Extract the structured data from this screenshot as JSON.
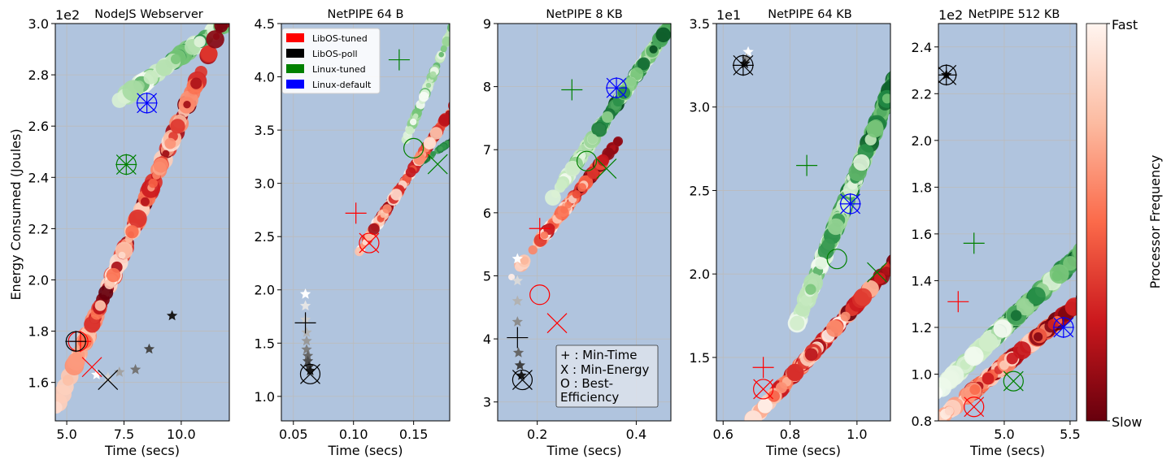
{
  "figure": {
    "ylabel": "Energy Consumed (Joules)",
    "colorbar": {
      "label": "Processor Frequency",
      "top_label": "Fast",
      "bottom_label": "Slow",
      "colors": [
        "#fff5f0",
        "#fcbba1",
        "#fb6a4a",
        "#cb181d",
        "#67000d"
      ]
    },
    "legend": [
      {
        "label": "LibOS-tuned",
        "color": "#ff0000"
      },
      {
        "label": "LibOS-poll",
        "color": "#000000"
      },
      {
        "label": "Linux-tuned",
        "color": "#008000"
      },
      {
        "label": "Linux-default",
        "color": "#0000ff"
      }
    ],
    "marker_key": [
      "+ : Min-Time",
      "X : Min-Energy",
      "O : Best-",
      "Efficiency"
    ],
    "panel_bg": "#b0c4de"
  },
  "chart_data": [
    {
      "type": "scatter",
      "title": "NodeJS Webserver",
      "xlabel": "Time (secs)",
      "ylabel": "Energy Consumed (Joules)",
      "y_multiplier": "1e2",
      "xlim": [
        4.5,
        12.1
      ],
      "ylim": [
        1.45,
        3.0
      ],
      "xticks": [
        5.0,
        7.5,
        10.0
      ],
      "xtick_labels": [
        "5.0",
        "7.5",
        "10.0"
      ],
      "yticks": [
        1.6,
        1.8,
        2.0,
        2.2,
        2.4,
        2.6,
        2.8,
        3.0
      ],
      "ytick_labels": [
        "1.6",
        "1.8",
        "2.0",
        "2.2",
        "2.4",
        "2.6",
        "2.8",
        "3.0"
      ],
      "clouds": [
        {
          "group": "Linux-tuned",
          "palette": "green",
          "p0": [
            7.6,
            2.72
          ],
          "p1": [
            12.2,
            3.02
          ],
          "spread": 0.25,
          "count": 90,
          "size": [
            5,
            13
          ],
          "shade": [
            0.0,
            0.8
          ]
        },
        {
          "group": "LibOS-tuned",
          "palette": "red",
          "p0": [
            5.5,
            1.7
          ],
          "p1": [
            11.2,
            2.88
          ],
          "spread": 0.55,
          "count": 200,
          "size": [
            4,
            12
          ],
          "shade": [
            0.0,
            1.0
          ]
        }
      ],
      "markers": [
        {
          "group": "LibOS-tuned",
          "color": "#ff0000",
          "min_time": [
            5.6,
            1.76
          ],
          "min_energy": [
            6.1,
            1.66
          ],
          "best_eff": [
            5.5,
            1.76
          ]
        },
        {
          "group": "LibOS-poll",
          "color": "#000000",
          "min_time": [
            5.4,
            1.76
          ],
          "min_energy": [
            6.8,
            1.61
          ],
          "best_eff": [
            5.4,
            1.76
          ]
        },
        {
          "group": "Linux-tuned",
          "color": "#008000",
          "min_time": [
            7.6,
            2.45
          ],
          "min_energy": [
            7.6,
            2.45
          ],
          "best_eff": [
            7.6,
            2.45
          ]
        },
        {
          "group": "Linux-default",
          "color": "#0000ff",
          "min_time": [
            8.5,
            2.69
          ],
          "min_energy": [
            8.5,
            2.69
          ],
          "best_eff": [
            8.5,
            2.69
          ]
        }
      ],
      "stars": [
        {
          "x": 6.3,
          "y": 1.63
        },
        {
          "x": 6.8,
          "y": 1.62
        },
        {
          "x": 7.3,
          "y": 1.64
        },
        {
          "x": 8.0,
          "y": 1.65
        },
        {
          "x": 8.6,
          "y": 1.73
        },
        {
          "x": 9.6,
          "y": 1.86
        }
      ]
    },
    {
      "type": "scatter",
      "title": "NetPIPE 64 B",
      "xlabel": "Time (secs)",
      "y_multiplier": "",
      "xlim": [
        0.04,
        0.18
      ],
      "ylim": [
        0.77,
        4.5
      ],
      "xticks": [
        0.05,
        0.1,
        0.15
      ],
      "xtick_labels": [
        "0.05",
        "0.10",
        "0.15"
      ],
      "yticks": [
        1.0,
        1.5,
        2.0,
        2.5,
        3.0,
        3.5,
        4.0,
        4.5
      ],
      "ytick_labels": [
        "1.0",
        "1.5",
        "2.0",
        "2.5",
        "3.0",
        "3.5",
        "4.0",
        "4.5"
      ],
      "clouds": [
        {
          "group": "Linux-tuned",
          "palette": "green",
          "p0": [
            0.145,
            3.45
          ],
          "p1": [
            0.182,
            4.45
          ],
          "spread": 0.22,
          "count": 80,
          "size": [
            3,
            7
          ],
          "shade": [
            0.0,
            0.6
          ]
        },
        {
          "group": "Linux-default",
          "palette": "green",
          "p0": [
            0.15,
            3.15
          ],
          "p1": [
            0.182,
            3.4
          ],
          "spread": 0.25,
          "count": 40,
          "size": [
            3,
            5
          ],
          "shade": [
            0.6,
            1.0
          ]
        },
        {
          "group": "LibOS-tuned",
          "palette": "red",
          "p0": [
            0.11,
            2.45
          ],
          "p1": [
            0.182,
            3.7
          ],
          "spread": 0.45,
          "count": 150,
          "size": [
            3,
            8
          ],
          "shade": [
            0.0,
            1.0
          ]
        }
      ],
      "markers": [
        {
          "group": "LibOS-tuned",
          "color": "#ff0000",
          "min_time": [
            0.102,
            2.72
          ],
          "min_energy": [
            0.113,
            2.44
          ],
          "best_eff": [
            0.113,
            2.44
          ]
        },
        {
          "group": "LibOS-poll",
          "color": "#000000",
          "min_time": [
            0.06,
            1.69
          ],
          "min_energy": [
            0.064,
            1.21
          ],
          "best_eff": [
            0.064,
            1.21
          ]
        },
        {
          "group": "Linux-tuned",
          "color": "#008000",
          "min_time": [
            0.138,
            4.16
          ],
          "min_energy": [
            0.17,
            3.18
          ],
          "best_eff": [
            0.15,
            3.33
          ]
        },
        {
          "group": "Linux-default",
          "color": "#0000ff",
          "min_time": null,
          "min_energy": null,
          "best_eff": null
        }
      ],
      "stars": [
        {
          "x": 0.06,
          "y": 1.96
        },
        {
          "x": 0.06,
          "y": 1.85
        },
        {
          "x": 0.06,
          "y": 1.72
        },
        {
          "x": 0.061,
          "y": 1.6
        },
        {
          "x": 0.061,
          "y": 1.52
        },
        {
          "x": 0.061,
          "y": 1.44
        },
        {
          "x": 0.062,
          "y": 1.38
        },
        {
          "x": 0.062,
          "y": 1.33
        },
        {
          "x": 0.063,
          "y": 1.28
        },
        {
          "x": 0.064,
          "y": 1.24
        }
      ]
    },
    {
      "type": "scatter",
      "title": "NetPIPE 8 KB",
      "xlabel": "Time (secs)",
      "y_multiplier": "",
      "xlim": [
        0.12,
        0.47
      ],
      "ylim": [
        2.7,
        9.0
      ],
      "xticks": [
        0.2,
        0.4
      ],
      "xtick_labels": [
        "0.2",
        "0.4"
      ],
      "yticks": [
        3,
        4,
        5,
        6,
        7,
        8,
        9
      ],
      "ytick_labels": [
        "3",
        "4",
        "5",
        "6",
        "7",
        "8",
        "9"
      ],
      "clouds": [
        {
          "group": "Linux-tuned",
          "palette": "green",
          "p0": [
            0.28,
            6.8
          ],
          "p1": [
            0.47,
            9.0
          ],
          "spread": 0.9,
          "count": 220,
          "size": [
            5,
            10
          ],
          "shade": [
            0.0,
            1.0
          ]
        },
        {
          "group": "LibOS-tuned",
          "palette": "red",
          "p0": [
            0.19,
            5.4
          ],
          "p1": [
            0.33,
            6.8
          ],
          "spread": 0.9,
          "count": 160,
          "size": [
            4,
            9
          ],
          "shade": [
            0.0,
            1.0
          ]
        }
      ],
      "markers": [
        {
          "group": "LibOS-tuned",
          "color": "#ff0000",
          "min_time": [
            0.205,
            5.75
          ],
          "min_energy": [
            0.24,
            4.25
          ],
          "best_eff": [
            0.205,
            4.7
          ]
        },
        {
          "group": "LibOS-poll",
          "color": "#000000",
          "min_time": [
            0.16,
            4.02
          ],
          "min_energy": [
            0.17,
            3.35
          ],
          "best_eff": [
            0.17,
            3.35
          ]
        },
        {
          "group": "Linux-tuned",
          "color": "#008000",
          "min_time": [
            0.27,
            7.95
          ],
          "min_energy": [
            0.34,
            6.7
          ],
          "best_eff": [
            0.3,
            6.82
          ]
        },
        {
          "group": "Linux-default",
          "color": "#0000ff",
          "min_time": [
            0.36,
            7.98
          ],
          "min_energy": [
            0.36,
            7.98
          ],
          "best_eff": [
            0.36,
            7.98
          ]
        }
      ],
      "stars": [
        {
          "x": 0.16,
          "y": 5.27
        },
        {
          "x": 0.16,
          "y": 4.92
        },
        {
          "x": 0.16,
          "y": 4.6
        },
        {
          "x": 0.16,
          "y": 4.27
        },
        {
          "x": 0.162,
          "y": 3.78
        },
        {
          "x": 0.165,
          "y": 3.58
        },
        {
          "x": 0.168,
          "y": 3.42
        }
      ]
    },
    {
      "type": "scatter",
      "title": "NetPIPE 64 KB",
      "xlabel": "Time (secs)",
      "y_multiplier": "1e1",
      "xlim": [
        0.58,
        1.1
      ],
      "ylim": [
        1.12,
        3.5
      ],
      "xticks": [
        0.6,
        0.8,
        1.0
      ],
      "xtick_labels": [
        "0.6",
        "0.8",
        "1.0"
      ],
      "yticks": [
        1.5,
        2.0,
        2.5,
        3.0,
        3.5
      ],
      "ytick_labels": [
        "1.5",
        "2.0",
        "2.5",
        "3.0",
        "3.5"
      ],
      "clouds": [
        {
          "group": "Linux-tuned",
          "palette": "green",
          "p0": [
            0.87,
            1.95
          ],
          "p1": [
            1.1,
            3.1
          ],
          "spread": 0.85,
          "count": 260,
          "size": [
            6,
            12
          ],
          "shade": [
            0.0,
            1.0
          ]
        },
        {
          "group": "LibOS-tuned",
          "palette": "red",
          "p0": [
            0.73,
            1.22
          ],
          "p1": [
            1.08,
            2.0
          ],
          "spread": 0.8,
          "count": 220,
          "size": [
            5,
            11
          ],
          "shade": [
            0.0,
            1.0
          ]
        }
      ],
      "markers": [
        {
          "group": "LibOS-tuned",
          "color": "#ff0000",
          "min_time": [
            0.72,
            1.44
          ],
          "min_energy": [
            0.72,
            1.31
          ],
          "best_eff": [
            0.72,
            1.31
          ]
        },
        {
          "group": "LibOS-poll",
          "color": "#000000",
          "min_time": [
            0.66,
            3.25
          ],
          "min_energy": [
            0.66,
            3.25
          ],
          "best_eff": [
            0.66,
            3.25
          ]
        },
        {
          "group": "Linux-tuned",
          "color": "#008000",
          "min_time": [
            0.85,
            2.65
          ],
          "min_energy": [
            1.06,
            2.01
          ],
          "best_eff": [
            0.94,
            2.09
          ]
        },
        {
          "group": "Linux-default",
          "color": "#0000ff",
          "min_time": [
            0.98,
            2.42
          ],
          "min_energy": [
            0.98,
            2.42
          ],
          "best_eff": [
            0.98,
            2.42
          ]
        }
      ],
      "stars": [
        {
          "x": 0.675,
          "y": 3.33
        },
        {
          "x": 0.67,
          "y": 3.29
        },
        {
          "x": 0.665,
          "y": 3.26
        }
      ]
    },
    {
      "type": "scatter",
      "title": "NetPIPE 512 KB",
      "xlabel": "Time (secs)",
      "y_multiplier": "1e2",
      "xlim": [
        4.5,
        5.55
      ],
      "ylim": [
        0.8,
        2.5
      ],
      "xticks": [
        5.0,
        5.5
      ],
      "xtick_labels": [
        "5.0",
        "5.5"
      ],
      "yticks": [
        0.8,
        1.0,
        1.2,
        1.4,
        1.6,
        1.8,
        2.0,
        2.2,
        2.4
      ],
      "ytick_labels": [
        "0.8",
        "1.0",
        "1.2",
        "1.4",
        "1.6",
        "1.8",
        "2.0",
        "2.2",
        "2.4"
      ],
      "clouds": [
        {
          "group": "Linux-tuned",
          "palette": "green",
          "p0": [
            4.72,
            1.05
          ],
          "p1": [
            5.55,
            1.5
          ],
          "spread": 0.9,
          "count": 220,
          "size": [
            6,
            13
          ],
          "shade": [
            0.0,
            1.0
          ]
        },
        {
          "group": "LibOS-tuned",
          "palette": "red",
          "p0": [
            4.62,
            0.86
          ],
          "p1": [
            5.45,
            1.25
          ],
          "spread": 0.9,
          "count": 200,
          "size": [
            5,
            12
          ],
          "shade": [
            0.0,
            1.0
          ]
        }
      ],
      "markers": [
        {
          "group": "LibOS-tuned",
          "color": "#ff0000",
          "min_time": [
            4.65,
            1.31
          ],
          "min_energy": [
            4.77,
            0.86
          ],
          "best_eff": [
            4.77,
            0.86
          ]
        },
        {
          "group": "LibOS-poll",
          "color": "#000000",
          "min_time": [
            4.56,
            2.28
          ],
          "min_energy": [
            4.56,
            2.28
          ],
          "best_eff": [
            4.56,
            2.28
          ]
        },
        {
          "group": "Linux-tuned",
          "color": "#008000",
          "min_time": [
            4.77,
            1.56
          ],
          "min_energy": [
            5.07,
            0.97
          ],
          "best_eff": [
            5.07,
            0.97
          ]
        },
        {
          "group": "Linux-default",
          "color": "#0000ff",
          "min_time": [
            5.45,
            1.2
          ],
          "min_energy": [
            5.45,
            1.2
          ],
          "best_eff": [
            5.45,
            1.2
          ]
        }
      ],
      "stars": [
        {
          "x": 4.56,
          "y": 2.28
        }
      ]
    }
  ]
}
